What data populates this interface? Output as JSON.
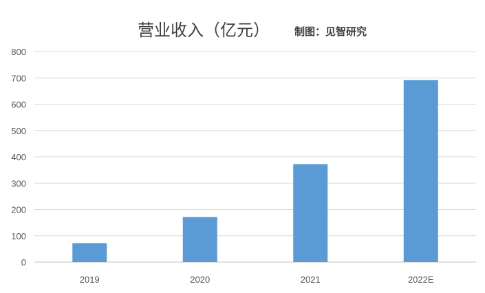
{
  "chart_data": {
    "type": "bar",
    "title": "营业收入（亿元）",
    "subtitle": "制图：见智研究",
    "categories": [
      "2019",
      "2020",
      "2021",
      "2022E"
    ],
    "series": [
      {
        "values": [
          72,
          171,
          372,
          692
        ]
      }
    ],
    "ylim": [
      0,
      800
    ],
    "yticks": [
      0,
      100,
      200,
      300,
      400,
      500,
      600,
      700,
      800
    ],
    "grid": true,
    "bar_color": "#5b9bd5"
  }
}
